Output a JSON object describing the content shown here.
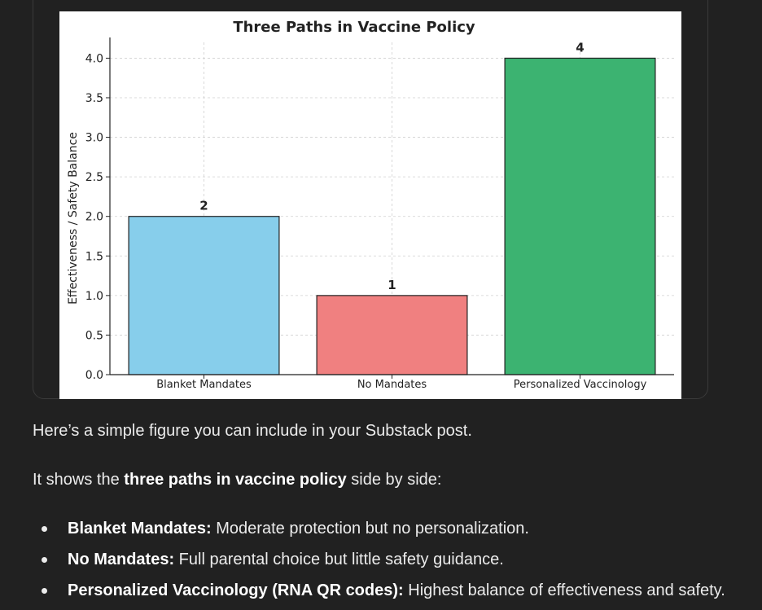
{
  "chart_data": {
    "type": "bar",
    "title": "Three Paths in Vaccine Policy",
    "xlabel": "",
    "ylabel": "Effectiveness / Safety Balance",
    "categories": [
      "Blanket Mandates",
      "No Mandates",
      "Personalized Vaccinology"
    ],
    "values": [
      2,
      1,
      4
    ],
    "data_labels": [
      "2",
      "1",
      "4"
    ],
    "colors": [
      "#87CEEB",
      "#F08080",
      "#3CB371"
    ],
    "ylim": [
      0,
      4.2
    ],
    "yticks": [
      0.0,
      0.5,
      1.0,
      1.5,
      2.0,
      2.5,
      3.0,
      3.5,
      4.0
    ],
    "ytick_labels": [
      "0.0",
      "0.5",
      "1.0",
      "1.5",
      "2.0",
      "2.5",
      "3.0",
      "3.5",
      "4.0"
    ],
    "grid": true,
    "legend": "none"
  },
  "message": {
    "intro": "Here’s a simple figure you can include in your Substack post.",
    "shows_prefix": "It shows the ",
    "shows_bold": "three paths in vaccine policy",
    "shows_suffix": " side by side:",
    "bullets": [
      {
        "term": "Blanket Mandates:",
        "text": " Moderate protection but no personalization."
      },
      {
        "term": "No Mandates:",
        "text": " Full parental choice but little safety guidance."
      },
      {
        "term": "Personalized Vaccinology (RNA QR codes):",
        "text": " Highest balance of effectiveness and safety."
      }
    ]
  }
}
